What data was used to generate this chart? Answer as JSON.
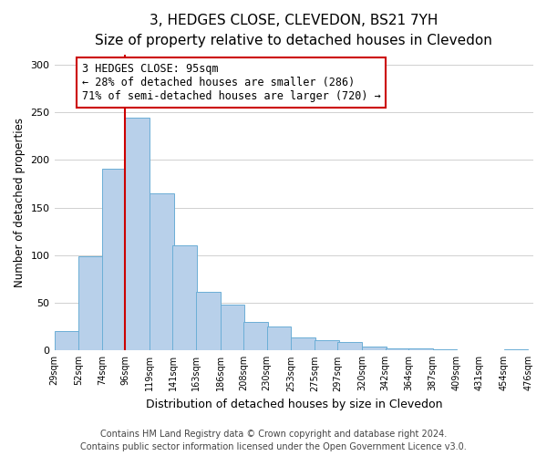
{
  "title": "3, HEDGES CLOSE, CLEVEDON, BS21 7YH",
  "subtitle": "Size of property relative to detached houses in Clevedon",
  "xlabel": "Distribution of detached houses by size in Clevedon",
  "ylabel": "Number of detached properties",
  "bar_left_edges": [
    29,
    52,
    74,
    96,
    119,
    141,
    163,
    186,
    208,
    230,
    253,
    275,
    297,
    320,
    342,
    364,
    387,
    409,
    431,
    454
  ],
  "bar_heights": [
    20,
    99,
    191,
    244,
    165,
    110,
    62,
    48,
    30,
    25,
    14,
    11,
    9,
    4,
    2,
    2,
    1,
    0,
    0,
    1
  ],
  "bin_width": 23,
  "bar_color": "#b8d0ea",
  "bar_edge_color": "#6baed6",
  "vline_x": 96,
  "vline_color": "#cc0000",
  "annotation_text_line1": "3 HEDGES CLOSE: 95sqm",
  "annotation_text_line2": "← 28% of detached houses are smaller (286)",
  "annotation_text_line3": "71% of semi-detached houses are larger (720) →",
  "annotation_box_edge_color": "#cc0000",
  "annotation_box_face_color": "#ffffff",
  "ylim": [
    0,
    310
  ],
  "yticks": [
    0,
    50,
    100,
    150,
    200,
    250,
    300
  ],
  "tick_labels": [
    "29sqm",
    "52sqm",
    "74sqm",
    "96sqm",
    "119sqm",
    "141sqm",
    "163sqm",
    "186sqm",
    "208sqm",
    "230sqm",
    "253sqm",
    "275sqm",
    "297sqm",
    "320sqm",
    "342sqm",
    "364sqm",
    "387sqm",
    "409sqm",
    "431sqm",
    "454sqm",
    "476sqm"
  ],
  "footer_line1": "Contains HM Land Registry data © Crown copyright and database right 2024.",
  "footer_line2": "Contains public sector information licensed under the Open Government Licence v3.0.",
  "title_fontsize": 11,
  "subtitle_fontsize": 9,
  "xlabel_fontsize": 9,
  "ylabel_fontsize": 8.5,
  "annotation_fontsize": 8.5,
  "footer_fontsize": 7,
  "bg_color": "#ffffff",
  "grid_color": "#d0d0d0"
}
